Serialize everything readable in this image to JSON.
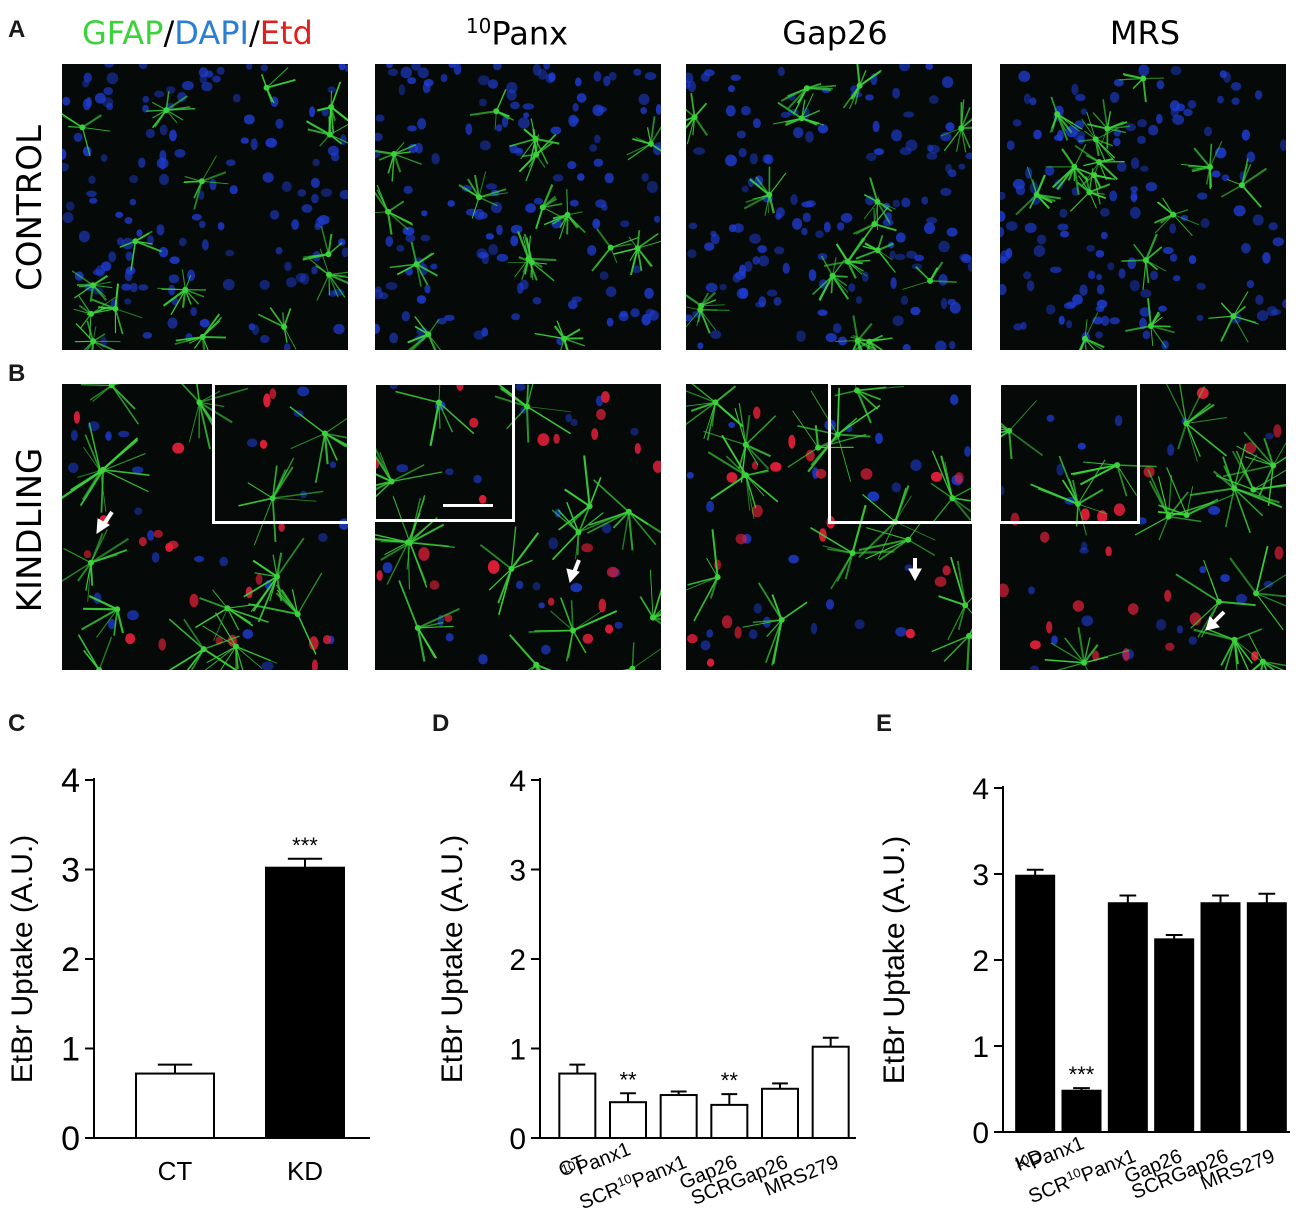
{
  "figure": {
    "panels": {
      "A": "A",
      "B": "B",
      "C": "C",
      "D": "D",
      "E": "E"
    },
    "legend": {
      "parts": [
        {
          "text": "GFAP",
          "color": "#3cd23c"
        },
        {
          "text": "/",
          "color": "#000000"
        },
        {
          "text": "DAPI",
          "color": "#2a7fd4"
        },
        {
          "text": "/",
          "color": "#000000"
        },
        {
          "text": "Etd",
          "color": "#e02020"
        }
      ]
    },
    "columns": [
      {
        "sup": "10",
        "text": "Panx"
      },
      {
        "sup": "",
        "text": "Gap26"
      },
      {
        "sup": "",
        "text": "MRS"
      }
    ],
    "rows": {
      "control": "CONTROL",
      "kindling": "KINDLING"
    },
    "colors": {
      "gfap": "#3cd23c",
      "dapi": "#1f3dd6",
      "etd": "#e8203a"
    }
  },
  "chart_data": [
    {
      "panel": "C",
      "type": "bar",
      "ylabel": "EtBr Uptake (A.U.)",
      "ylim": [
        0,
        4
      ],
      "yticks": [
        "0",
        "1",
        "2",
        "3",
        "4"
      ],
      "categories": [
        {
          "label": "CT",
          "sup": ""
        },
        {
          "label": "KD",
          "sup": ""
        }
      ],
      "values": [
        0.72,
        3.02
      ],
      "errors": [
        0.1,
        0.1
      ],
      "fills": [
        "#ffffff",
        "#000000"
      ],
      "annotations": [
        "",
        "***"
      ]
    },
    {
      "panel": "D",
      "type": "bar",
      "ylabel": "EtBr Uptake (A.U.)",
      "ylim": [
        0,
        4
      ],
      "yticks": [
        "0",
        "1",
        "2",
        "3",
        "4"
      ],
      "categories": [
        {
          "label": "CT",
          "sup": ""
        },
        {
          "label": "Panx1",
          "sup": "10"
        },
        {
          "label": "Panx1",
          "sup": "10",
          "prefix": "SCR"
        },
        {
          "label": "Gap26",
          "sup": ""
        },
        {
          "label": "SCRGap26",
          "sup": ""
        },
        {
          "label": "MRS279",
          "sup": ""
        }
      ],
      "values": [
        0.72,
        0.4,
        0.48,
        0.37,
        0.55,
        1.02
      ],
      "errors": [
        0.1,
        0.1,
        0.04,
        0.12,
        0.06,
        0.1
      ],
      "fills": [
        "#ffffff",
        "#ffffff",
        "#ffffff",
        "#ffffff",
        "#ffffff",
        "#ffffff"
      ],
      "annotations": [
        "",
        "**",
        "",
        "**",
        "",
        ""
      ]
    },
    {
      "panel": "E",
      "type": "bar",
      "ylabel": "EtBr Uptake (A.U.)",
      "ylim": [
        0,
        4
      ],
      "yticks": [
        "0",
        "1",
        "2",
        "3",
        "4"
      ],
      "categories": [
        {
          "label": "KD",
          "sup": ""
        },
        {
          "label": "Panx1",
          "sup": "10"
        },
        {
          "label": "Panx1",
          "sup": "10",
          "prefix": "SCR"
        },
        {
          "label": "Gap26",
          "sup": ""
        },
        {
          "label": "SCRGap26",
          "sup": ""
        },
        {
          "label": "MRS279",
          "sup": ""
        }
      ],
      "values": [
        2.98,
        0.48,
        2.66,
        2.24,
        2.66,
        2.66
      ],
      "errors": [
        0.07,
        0.03,
        0.09,
        0.05,
        0.09,
        0.11
      ],
      "fills": [
        "#000000",
        "#000000",
        "#000000",
        "#000000",
        "#000000",
        "#000000"
      ],
      "annotations": [
        "",
        "***",
        "",
        "",
        "",
        ""
      ]
    }
  ]
}
